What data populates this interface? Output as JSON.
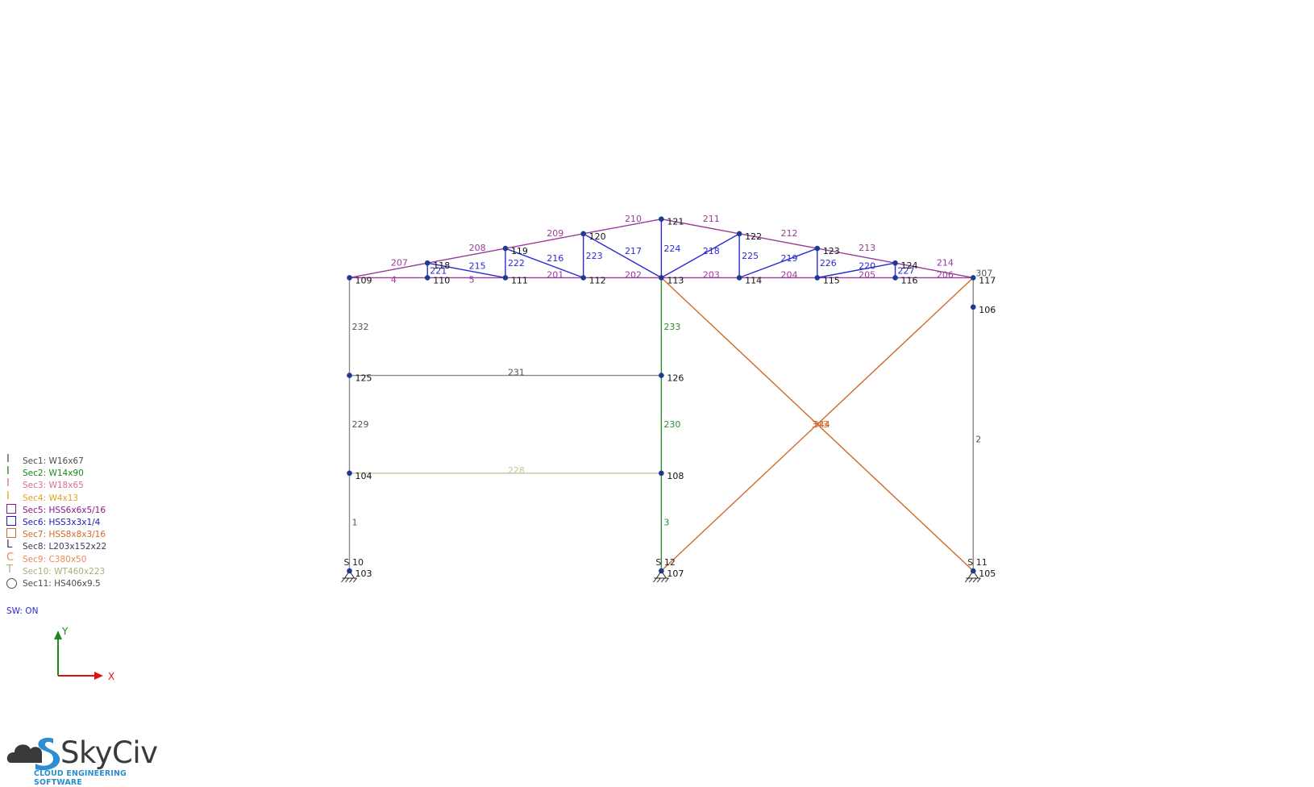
{
  "nodes": [
    {
      "id": "103",
      "x": 0,
      "y": 0
    },
    {
      "id": "104",
      "x": 0,
      "y": 3
    },
    {
      "id": "125",
      "x": 0,
      "y": 6
    },
    {
      "id": "109",
      "x": 0,
      "y": 9
    },
    {
      "id": "110",
      "x": 2.4,
      "y": 9
    },
    {
      "id": "111",
      "x": 4.8,
      "y": 9
    },
    {
      "id": "112",
      "x": 7.2,
      "y": 9
    },
    {
      "id": "113",
      "x": 9.6,
      "y": 9
    },
    {
      "id": "114",
      "x": 12,
      "y": 9
    },
    {
      "id": "115",
      "x": 14.4,
      "y": 9
    },
    {
      "id": "116",
      "x": 16.8,
      "y": 9
    },
    {
      "id": "117",
      "x": 19.2,
      "y": 9
    },
    {
      "id": "118",
      "x": 2.4,
      "y": 9.45
    },
    {
      "id": "119",
      "x": 4.8,
      "y": 9.9
    },
    {
      "id": "120",
      "x": 7.2,
      "y": 10.35
    },
    {
      "id": "121",
      "x": 9.6,
      "y": 10.8
    },
    {
      "id": "122",
      "x": 12,
      "y": 10.35
    },
    {
      "id": "123",
      "x": 14.4,
      "y": 9.9
    },
    {
      "id": "124",
      "x": 16.8,
      "y": 9.45
    },
    {
      "id": "107",
      "x": 9.6,
      "y": 0
    },
    {
      "id": "108",
      "x": 9.6,
      "y": 3
    },
    {
      "id": "126",
      "x": 9.6,
      "y": 6
    },
    {
      "id": "105",
      "x": 19.2,
      "y": 0
    },
    {
      "id": "106",
      "x": 19.2,
      "y": 8.1
    }
  ],
  "members": [
    {
      "id": "1",
      "n1": "103",
      "n2": "104",
      "sec": 1
    },
    {
      "id": "229",
      "n1": "104",
      "n2": "125",
      "sec": 1
    },
    {
      "id": "232",
      "n1": "125",
      "n2": "109",
      "sec": 1
    },
    {
      "id": "3",
      "n1": "107",
      "n2": "108",
      "sec": 2
    },
    {
      "id": "230",
      "n1": "108",
      "n2": "126",
      "sec": 2
    },
    {
      "id": "233",
      "n1": "126",
      "n2": "113",
      "sec": 2
    },
    {
      "id": "2",
      "n1": "105",
      "n2": "106",
      "sec": 1
    },
    {
      "id": "307",
      "n1": "106",
      "n2": "117",
      "sec": 1
    },
    {
      "id": "228",
      "n1": "104",
      "n2": "108",
      "sec": 10
    },
    {
      "id": "231",
      "n1": "125",
      "n2": "126",
      "sec": 8
    },
    {
      "id": "4",
      "n1": "109",
      "n2": "110",
      "sec": 5
    },
    {
      "id": "5",
      "n1": "110",
      "n2": "111",
      "sec": 5
    },
    {
      "id": "201",
      "n1": "111",
      "n2": "112",
      "sec": 5
    },
    {
      "id": "202",
      "n1": "112",
      "n2": "113",
      "sec": 5
    },
    {
      "id": "203",
      "n1": "113",
      "n2": "114",
      "sec": 5
    },
    {
      "id": "204",
      "n1": "114",
      "n2": "115",
      "sec": 5
    },
    {
      "id": "205",
      "n1": "115",
      "n2": "116",
      "sec": 5
    },
    {
      "id": "206",
      "n1": "116",
      "n2": "117",
      "sec": 5
    },
    {
      "id": "207",
      "n1": "109",
      "n2": "118",
      "sec": 5
    },
    {
      "id": "208",
      "n1": "118",
      "n2": "119",
      "sec": 5
    },
    {
      "id": "209",
      "n1": "119",
      "n2": "120",
      "sec": 5
    },
    {
      "id": "210",
      "n1": "120",
      "n2": "121",
      "sec": 5
    },
    {
      "id": "211",
      "n1": "121",
      "n2": "122",
      "sec": 5
    },
    {
      "id": "212",
      "n1": "122",
      "n2": "123",
      "sec": 5
    },
    {
      "id": "213",
      "n1": "123",
      "n2": "124",
      "sec": 5
    },
    {
      "id": "214",
      "n1": "124",
      "n2": "117",
      "sec": 5
    },
    {
      "id": "221",
      "n1": "110",
      "n2": "118",
      "sec": 6
    },
    {
      "id": "222",
      "n1": "111",
      "n2": "119",
      "sec": 6
    },
    {
      "id": "223",
      "n1": "112",
      "n2": "120",
      "sec": 6
    },
    {
      "id": "224",
      "n1": "113",
      "n2": "121",
      "sec": 6
    },
    {
      "id": "225",
      "n1": "114",
      "n2": "122",
      "sec": 6
    },
    {
      "id": "226",
      "n1": "115",
      "n2": "123",
      "sec": 6
    },
    {
      "id": "227",
      "n1": "116",
      "n2": "124",
      "sec": 6
    },
    {
      "id": "215",
      "n1": "118",
      "n2": "111",
      "sec": 6
    },
    {
      "id": "216",
      "n1": "119",
      "n2": "112",
      "sec": 6
    },
    {
      "id": "217",
      "n1": "120",
      "n2": "113",
      "sec": 6
    },
    {
      "id": "218",
      "n1": "113",
      "n2": "122",
      "sec": 6
    },
    {
      "id": "219",
      "n1": "114",
      "n2": "123",
      "sec": 6
    },
    {
      "id": "220",
      "n1": "115",
      "n2": "124",
      "sec": 6
    },
    {
      "id": "343",
      "n1": "113",
      "n2": "105",
      "sec": 7
    },
    {
      "id": "344",
      "n1": "107",
      "n2": "117",
      "sec": 7
    }
  ],
  "supports": [
    {
      "label": "S 10",
      "node": "103"
    },
    {
      "label": "S 12",
      "node": "107"
    },
    {
      "label": "S 11",
      "node": "105"
    }
  ],
  "sections": [
    {
      "label": "Sec1: W16x67",
      "symbol": "I",
      "color": "#4d4d4d",
      "member_color": "#8a8a8a"
    },
    {
      "label": "Sec2: W14x90",
      "symbol": "I",
      "color": "#1b8a1b",
      "member_color": "#2e8f2e"
    },
    {
      "label": "Sec3: W18x65",
      "symbol": "I",
      "color": "#e0679a",
      "member_color": "#e0679a"
    },
    {
      "label": "Sec4: W4x13",
      "symbol": "I",
      "color": "#e8a020",
      "member_color": "#e8a020"
    },
    {
      "label": "Sec5: HSS6x6x5/16",
      "symbol": "box",
      "color": "#8a1a8a",
      "member_color": "#9b3a9b"
    },
    {
      "label": "Sec6: HSS3x3x1/4",
      "symbol": "box",
      "color": "#1a1ab8",
      "member_color": "#2a2ad0"
    },
    {
      "label": "Sec7: HSS8x8x3/16",
      "symbol": "box",
      "color": "#d06a28",
      "member_color": "#d06a28"
    },
    {
      "label": "Sec8: L203x152x22",
      "symbol": "L",
      "color": "#3a3a5a",
      "member_color": "#8a8a8a"
    },
    {
      "label": "Sec9: C380x50",
      "symbol": "C",
      "color": "#e88a5a",
      "member_color": "#e88a5a"
    },
    {
      "label": "Sec10: WT460x223",
      "symbol": "T",
      "color": "#b0ad78",
      "member_color": "#c8c49a"
    },
    {
      "label": "Sec11: HS406x9.5",
      "symbol": "circle",
      "color": "#4d4d4d",
      "member_color": "#4d4d4d"
    }
  ],
  "self_weight": "SW: ON",
  "axes": {
    "x_label": "X",
    "y_label": "Y"
  },
  "logo": {
    "name": "SkyCiv",
    "tagline": "CLOUD ENGINEERING SOFTWARE"
  }
}
